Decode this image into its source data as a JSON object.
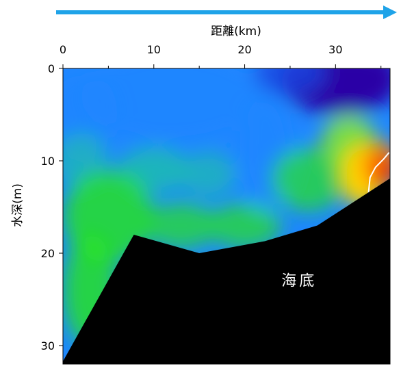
{
  "colors": {
    "arrow": "#1fa3e8",
    "seafloor": "#000000",
    "isoline": "#ffffff",
    "colormap": [
      "#2b00a6",
      "#1a46e0",
      "#1e86ff",
      "#20c7a0",
      "#27e61a",
      "#8cf01a",
      "#ffd400",
      "#ff7a00",
      "#e82000"
    ]
  },
  "chart_data": {
    "type": "heatmap",
    "xlabel": "距離(km)",
    "ylabel": "水深(m)",
    "xlim": [
      0,
      36
    ],
    "ylim": [
      0,
      32
    ],
    "y_inverted": true,
    "x_axis_position": "top",
    "x_ticks": [
      0,
      10,
      20,
      30
    ],
    "x_minor_ticks": [
      5,
      15,
      25,
      35
    ],
    "y_ticks": [
      0,
      10,
      20,
      30
    ],
    "annotation": "海底",
    "annotation_position": {
      "distance_km": 26,
      "depth_m": 23.5
    },
    "arrow_direction": "left-to-right",
    "isoline": [
      {
        "x": 33.6,
        "y": 13.7
      },
      {
        "x": 33.8,
        "y": 11.8
      },
      {
        "x": 34.4,
        "y": 10.7
      },
      {
        "x": 35.3,
        "y": 9.8
      },
      {
        "x": 35.9,
        "y": 9.1
      }
    ],
    "seafloor_profile": [
      {
        "x": 0,
        "y": 31.7
      },
      {
        "x": 7.8,
        "y": 18.0
      },
      {
        "x": 15.0,
        "y": 20.0
      },
      {
        "x": 22.2,
        "y": 18.7
      },
      {
        "x": 28.0,
        "y": 17.0
      },
      {
        "x": 36.0,
        "y": 11.9
      }
    ],
    "color_blobs": [
      {
        "x": 30.5,
        "y": 1.5,
        "color_index": 0,
        "strength": 1.0,
        "rx": 6.5,
        "ry": 3.5
      },
      {
        "x": 33,
        "y": 0.5,
        "color_index": 0,
        "strength": 1.0,
        "rx": 4,
        "ry": 2.5
      },
      {
        "x": 25,
        "y": 0.5,
        "color_index": 1,
        "strength": 0.8,
        "rx": 4,
        "ry": 2.5
      },
      {
        "x": 12,
        "y": 3,
        "color_index": 2,
        "strength": 0.6,
        "rx": 10,
        "ry": 5
      },
      {
        "x": 2,
        "y": 5,
        "color_index": 2,
        "strength": 0.6,
        "rx": 4,
        "ry": 5
      },
      {
        "x": 22.5,
        "y": 9,
        "color_index": 2,
        "strength": 0.9,
        "rx": 3,
        "ry": 6
      },
      {
        "x": 2,
        "y": 10,
        "color_index": 3,
        "strength": 0.6,
        "rx": 3,
        "ry": 3
      },
      {
        "x": 10,
        "y": 11,
        "color_index": 3,
        "strength": 0.7,
        "rx": 4,
        "ry": 2.5
      },
      {
        "x": 16,
        "y": 11.5,
        "color_index": 3,
        "strength": 0.6,
        "rx": 3,
        "ry": 2.5
      },
      {
        "x": 5,
        "y": 16,
        "color_index": 4,
        "strength": 0.8,
        "rx": 5,
        "ry": 5
      },
      {
        "x": 3,
        "y": 24,
        "color_index": 4,
        "strength": 0.8,
        "rx": 3,
        "ry": 6
      },
      {
        "x": 13,
        "y": 17,
        "color_index": 4,
        "strength": 0.7,
        "rx": 4,
        "ry": 2.5
      },
      {
        "x": 20,
        "y": 17,
        "color_index": 4,
        "strength": 0.7,
        "rx": 4,
        "ry": 2.5
      },
      {
        "x": 27,
        "y": 12,
        "color_index": 4,
        "strength": 0.7,
        "rx": 4,
        "ry": 3.5
      },
      {
        "x": 31.5,
        "y": 8,
        "color_index": 5,
        "strength": 0.8,
        "rx": 3,
        "ry": 3
      },
      {
        "x": 33,
        "y": 11.5,
        "color_index": 6,
        "strength": 1.0,
        "rx": 2.5,
        "ry": 3.5
      },
      {
        "x": 35,
        "y": 10.5,
        "color_index": 7,
        "strength": 1.0,
        "rx": 2,
        "ry": 2.5
      },
      {
        "x": 35.6,
        "y": 11.2,
        "color_index": 8,
        "strength": 0.9,
        "rx": 1.2,
        "ry": 1.6
      }
    ]
  }
}
